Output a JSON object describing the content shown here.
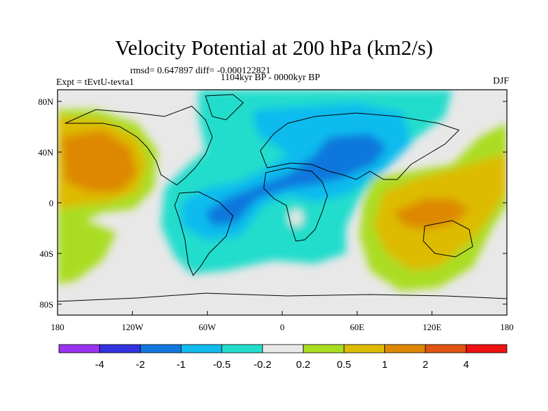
{
  "title": "Velocity Potential at 200 hPa (km2/s)",
  "stats_line": "rmsd= 0.647897 diff= -0.000122821",
  "period_line": "1104kyr BP - 0000kyr BP",
  "experiment": "Expt = tEvtU-tevta1",
  "season": "DJF",
  "map": {
    "lon_ticks": [
      "180",
      "120W",
      "60W",
      "0",
      "60E",
      "120E",
      "180"
    ],
    "lat_ticks": [
      "80N",
      "40N",
      "0",
      "40S",
      "80S"
    ],
    "land_color": "#e8e8e8"
  },
  "colorbar": {
    "colors": [
      "#9933ee",
      "#3333dd",
      "#1177dd",
      "#11bbee",
      "#22ddcc",
      "#e8e8e8",
      "#aadd22",
      "#ddbb00",
      "#dd8800",
      "#dd5511",
      "#ee1111"
    ],
    "labels": [
      "-4",
      "-2",
      "-1",
      "-0.5",
      "-0.2",
      "0.2",
      "0.5",
      "1",
      "2",
      "4"
    ]
  }
}
